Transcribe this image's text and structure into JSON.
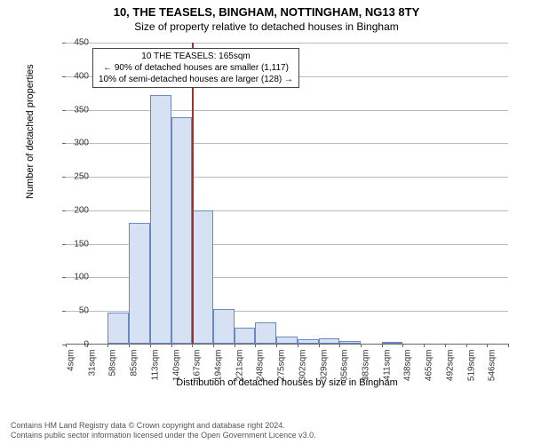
{
  "title": {
    "line1": "10, THE TEASELS, BINGHAM, NOTTINGHAM, NG13 8TY",
    "line2": "Size of property relative to detached houses in Bingham",
    "fontsize": 13
  },
  "chart": {
    "type": "histogram",
    "ylabel": "Number of detached properties",
    "xlabel": "Distribution of detached houses by size in Bingham",
    "label_fontsize": 11,
    "background_color": "#ffffff",
    "grid_color": "#bbbbbb",
    "axis_color": "#666666",
    "ylim": [
      0,
      450
    ],
    "ytick_step": 50,
    "yticks": [
      0,
      50,
      100,
      150,
      200,
      250,
      300,
      350,
      400,
      450
    ],
    "xticks": [
      "4sqm",
      "31sqm",
      "58sqm",
      "85sqm",
      "113sqm",
      "140sqm",
      "167sqm",
      "194sqm",
      "221sqm",
      "248sqm",
      "275sqm",
      "302sqm",
      "329sqm",
      "356sqm",
      "383sqm",
      "411sqm",
      "438sqm",
      "465sqm",
      "492sqm",
      "519sqm",
      "546sqm"
    ],
    "bar_color": "#d6e1f4",
    "bar_border_color": "#6a89c2",
    "bars": [
      0,
      0,
      46,
      180,
      370,
      338,
      198,
      52,
      24,
      32,
      10,
      6,
      8,
      4,
      0,
      2,
      0,
      0,
      0,
      0,
      0
    ],
    "marker": {
      "bin_index": 6,
      "color": "#a03030",
      "value_sqm": 165
    },
    "annotation": {
      "lines": [
        "10 THE TEASELS: 165sqm",
        "← 90% of detached houses are smaller (1,117)",
        "10% of semi-detached houses are larger (128) →"
      ],
      "fontsize": 10,
      "border_color": "#444444",
      "background_color": "#ffffff"
    }
  },
  "footnote": {
    "line1": "Contains HM Land Registry data © Crown copyright and database right 2024.",
    "line2": "Contains public sector information licensed under the Open Government Licence v3.0."
  }
}
